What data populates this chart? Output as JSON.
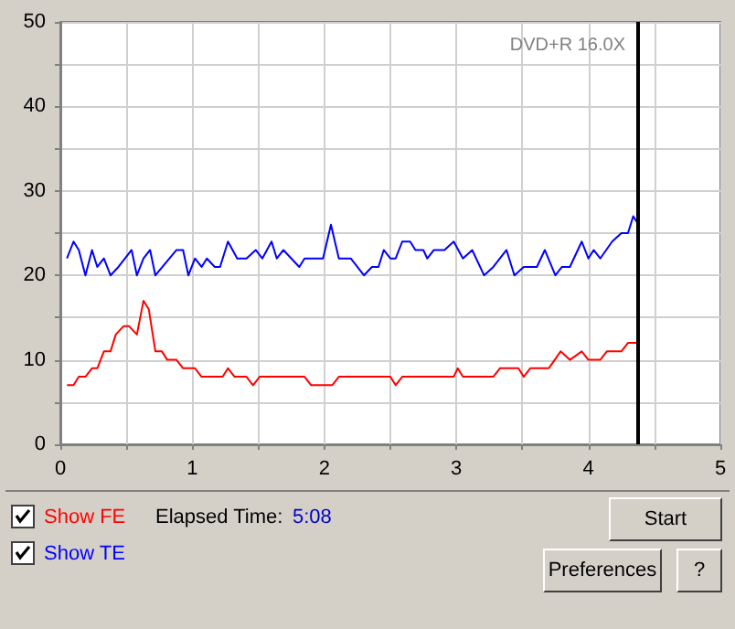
{
  "chart_data": {
    "type": "line",
    "xlim": [
      0,
      5
    ],
    "ylim": [
      0,
      50
    ],
    "xticks": [
      0,
      {
        "value": 0.5,
        "label": null
      },
      1,
      {
        "value": 1.5,
        "label": null
      },
      2,
      {
        "value": 2.5,
        "label": null
      },
      3,
      {
        "value": 3.5,
        "label": null
      },
      4,
      {
        "value": 4.5,
        "label": null
      },
      5
    ],
    "yticks": [
      0,
      {
        "value": 5,
        "label": null
      },
      10,
      {
        "value": 15,
        "label": null
      },
      20,
      {
        "value": 25,
        "label": null
      },
      30,
      {
        "value": 35,
        "label": null
      },
      40,
      {
        "value": 45,
        "label": null
      },
      50
    ],
    "grid": true,
    "legend": "bottom",
    "marker": "none",
    "line_style": "solid",
    "series": [
      {
        "name": "Show FE",
        "color": "#ff0000",
        "x": [
          0.05,
          0.1,
          0.14,
          0.19,
          0.24,
          0.28,
          0.33,
          0.38,
          0.42,
          0.48,
          0.52,
          0.58,
          0.63,
          0.67,
          0.72,
          0.77,
          0.81,
          0.88,
          0.93,
          1.02,
          1.07,
          1.23,
          1.27,
          1.32,
          1.41,
          1.46,
          1.51,
          1.85,
          1.9,
          2.06,
          2.11,
          2.5,
          2.54,
          2.59,
          2.98,
          3.01,
          3.05,
          3.28,
          3.33,
          3.47,
          3.51,
          3.56,
          3.7,
          3.79,
          3.86,
          3.95,
          4.0,
          4.09,
          4.14,
          4.25,
          4.3,
          4.38
        ],
        "values": [
          7,
          7,
          8,
          8,
          9,
          9,
          11,
          11,
          13,
          14,
          14,
          13,
          17,
          16,
          11,
          11,
          10,
          10,
          9,
          9,
          8,
          8,
          9,
          8,
          8,
          7,
          8,
          8,
          7,
          7,
          8,
          8,
          7,
          8,
          8,
          9,
          8,
          8,
          9,
          9,
          8,
          9,
          9,
          11,
          10,
          11,
          10,
          10,
          11,
          11,
          12,
          12
        ]
      },
      {
        "name": "Show TE",
        "color": "#0000ff",
        "x": [
          0.05,
          0.1,
          0.14,
          0.19,
          0.24,
          0.28,
          0.33,
          0.38,
          0.44,
          0.54,
          0.58,
          0.63,
          0.68,
          0.72,
          0.88,
          0.93,
          0.97,
          1.02,
          1.07,
          1.11,
          1.17,
          1.21,
          1.27,
          1.34,
          1.41,
          1.48,
          1.53,
          1.6,
          1.64,
          1.69,
          1.81,
          1.85,
          1.99,
          2.05,
          2.11,
          2.2,
          2.3,
          2.36,
          2.41,
          2.45,
          2.5,
          2.54,
          2.59,
          2.65,
          2.69,
          2.75,
          2.78,
          2.83,
          2.91,
          2.98,
          3.05,
          3.12,
          3.21,
          3.28,
          3.38,
          3.44,
          3.51,
          3.61,
          3.67,
          3.75,
          3.8,
          3.86,
          3.95,
          4.0,
          4.04,
          4.09,
          4.18,
          4.25,
          4.3,
          4.34,
          4.38
        ],
        "values": [
          22,
          24,
          23,
          20,
          23,
          21,
          22,
          20,
          21,
          23,
          20,
          22,
          23,
          20,
          23,
          23,
          20,
          22,
          21,
          22,
          21,
          21,
          24,
          22,
          22,
          23,
          22,
          24,
          22,
          23,
          21,
          22,
          22,
          26,
          22,
          22,
          20,
          21,
          21,
          23,
          22,
          22,
          24,
          24,
          23,
          23,
          22,
          23,
          23,
          24,
          22,
          23,
          20,
          21,
          23,
          20,
          21,
          21,
          23,
          20,
          21,
          21,
          24,
          22,
          23,
          22,
          24,
          25,
          25,
          27,
          26
        ]
      }
    ],
    "ref_lines": [
      {
        "axis": "x",
        "value": 4.38,
        "color": "#000000"
      }
    ],
    "annotations": [
      "DVD+R 16.0X",
      "Elapsed Time:",
      "5:08",
      "Start",
      "Preferences",
      "?"
    ]
  }
}
